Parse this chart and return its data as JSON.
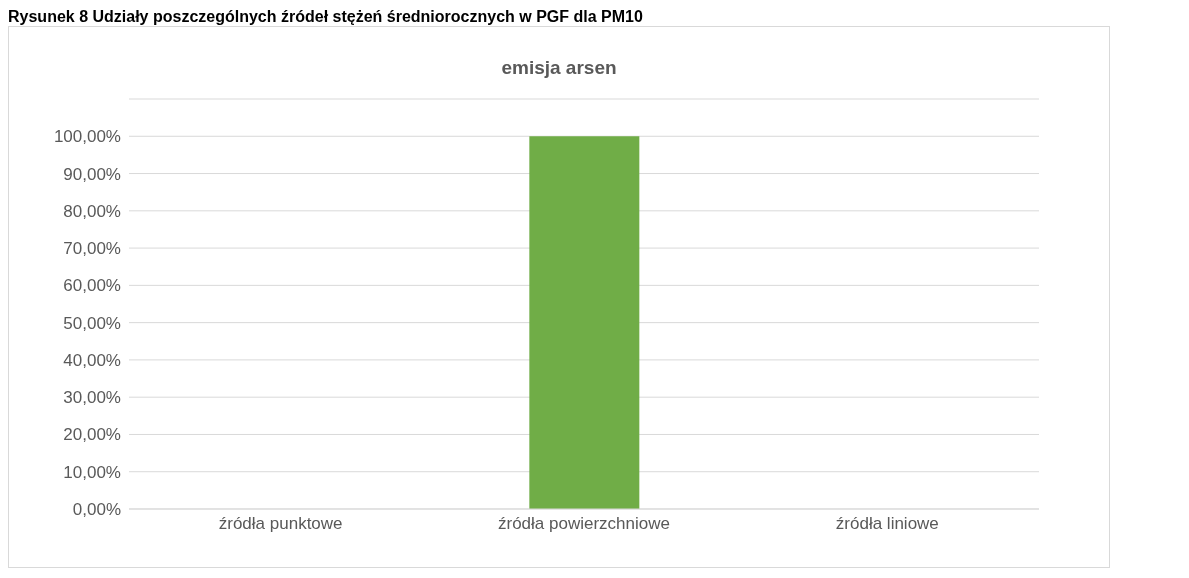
{
  "chart_data": {
    "type": "bar",
    "title": "emisja arsen",
    "annotations": [
      "Rysunek 8 Udziały poszczególnych źródeł stężeń średniorocznych w PGF dla PM10"
    ],
    "categories": [
      "źródła punktowe",
      "źródła powierzchniowe",
      "źródła liniowe"
    ],
    "values": [
      0,
      100,
      0
    ],
    "colors": [
      "#1e3a14",
      "#70ad47",
      "#1e3a14"
    ],
    "ylim": [
      0,
      110
    ],
    "yticks": [
      {
        "value": 0,
        "label": "0,00%"
      },
      {
        "value": 10,
        "label": "10,00%"
      },
      {
        "value": 20,
        "label": "20,00%"
      },
      {
        "value": 30,
        "label": "30,00%"
      },
      {
        "value": 40,
        "label": "40,00%"
      },
      {
        "value": 50,
        "label": "50,00%"
      },
      {
        "value": 60,
        "label": "60,00%"
      },
      {
        "value": 70,
        "label": "70,00%"
      },
      {
        "value": 80,
        "label": "80,00%"
      },
      {
        "value": 90,
        "label": "90,00%"
      },
      {
        "value": 100,
        "label": "100,00%"
      },
      {
        "value": 110,
        "label": null
      }
    ],
    "grid": "y"
  }
}
